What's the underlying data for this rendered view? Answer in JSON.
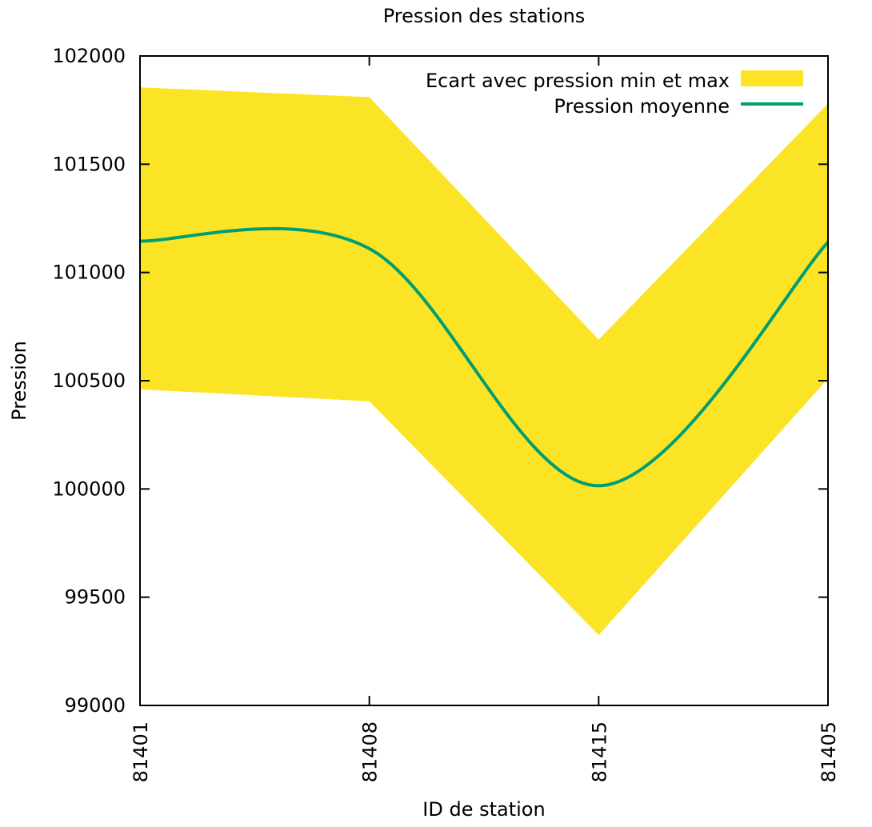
{
  "chart_data": {
    "type": "area",
    "title": "Pression des stations",
    "xlabel": "ID de station",
    "ylabel": "Pression",
    "categories": [
      "81401",
      "81408",
      "81415",
      "81405"
    ],
    "ylim": [
      99000,
      102000
    ],
    "yticks": [
      99000,
      99500,
      100000,
      100500,
      101000,
      101500,
      102000
    ],
    "grid": false,
    "legend_position": "top-right",
    "series": [
      {
        "name": "Ecart avec pression min et max",
        "kind": "band",
        "color": "#fbe426",
        "min": [
          100460,
          100405,
          99325,
          100510
        ],
        "max": [
          101855,
          101810,
          100690,
          101780
        ]
      },
      {
        "name": "Pression moyenne",
        "kind": "line",
        "smooth": true,
        "color": "#009e73",
        "values": [
          101145,
          101110,
          100015,
          101140
        ]
      }
    ]
  }
}
